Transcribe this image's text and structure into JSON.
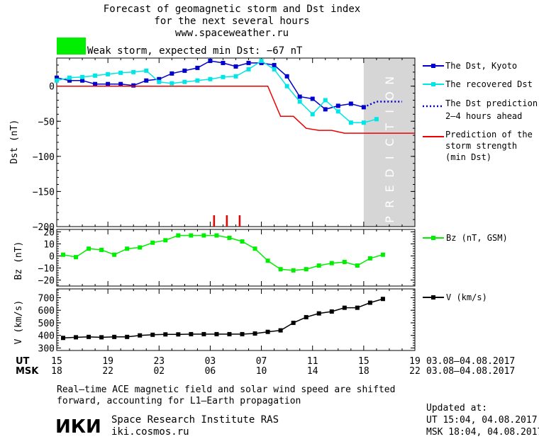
{
  "header": {
    "title_line1": "Forecast of geomagnetic storm and Dst index",
    "title_line2": "for the next several hours",
    "url": "www.spaceweather.ru",
    "status_text": "Weak storm, expected min Dst: −67 nT",
    "status_color": "#00ee00"
  },
  "chart_data": [
    {
      "type": "line",
      "panel": "dst",
      "ylabel": "Dst (nT)",
      "ylim": [
        -200,
        40
      ],
      "yticks": [
        0,
        -50,
        -100,
        -150,
        -200
      ],
      "ytick_labels": [
        "0",
        "−50",
        "−100",
        "−150",
        "−200"
      ],
      "xlim": [
        15,
        43
      ],
      "prediction_band": {
        "x": [
          39,
          43
        ],
        "label": "PREDICTION"
      },
      "storm_markers_x": [
        27.3,
        28.3,
        29.3
      ],
      "series": [
        {
          "name": "The Dst, Kyoto",
          "color": "#0000cc",
          "marker": "square",
          "x": [
            15,
            16,
            17,
            18,
            19,
            20,
            21,
            22,
            23,
            24,
            25,
            26,
            27,
            28,
            29,
            30,
            31,
            32,
            33,
            34,
            35,
            36,
            37,
            38,
            39
          ],
          "y": [
            12,
            8,
            8,
            3,
            3,
            3,
            1,
            8,
            10,
            18,
            22,
            26,
            36,
            33,
            28,
            33,
            33,
            30,
            14,
            -15,
            -18,
            -33,
            -28,
            -25,
            -30
          ]
        },
        {
          "name": "The recovered Dst",
          "color": "#00e5e5",
          "marker": "square",
          "x": [
            15,
            16,
            17,
            18,
            19,
            20,
            21,
            22,
            23,
            24,
            25,
            26,
            27,
            28,
            29,
            30,
            31,
            32,
            33,
            34,
            35,
            36,
            37,
            38,
            39,
            40
          ],
          "y": [
            8,
            12,
            13,
            15,
            17,
            19,
            20,
            22,
            6,
            4,
            6,
            8,
            10,
            13,
            14,
            24,
            36,
            24,
            0,
            -22,
            -40,
            -20,
            -36,
            -52,
            -52,
            -47
          ]
        },
        {
          "name": "The Dst prediction 2–4 hours ahead",
          "color": "#0000cc",
          "style": "dotted",
          "x": [
            39,
            40,
            41,
            42
          ],
          "y": [
            -30,
            -22,
            -22,
            -22
          ]
        },
        {
          "name": "Prediction of the storm strength (min Dst)",
          "color": "#ee0000",
          "x": [
            15,
            31.5,
            32.5,
            33.5,
            34.5,
            35.5,
            36.5,
            37.5,
            43
          ],
          "y": [
            0,
            0,
            -43,
            -43,
            -60,
            -63,
            -63,
            -67,
            -67
          ]
        }
      ]
    },
    {
      "type": "line",
      "panel": "bz",
      "ylabel": "Bz (nT)",
      "ylim": [
        -25,
        22
      ],
      "yticks": [
        20,
        10,
        0,
        -10,
        -20
      ],
      "ytick_labels": [
        "20",
        "10",
        "0",
        "−10",
        "−20"
      ],
      "xlim": [
        15,
        43
      ],
      "series": [
        {
          "name": "Bz (nT, GSM)",
          "color": "#00ee00",
          "marker": "square",
          "x": [
            15.5,
            16.5,
            17.5,
            18.5,
            19.5,
            20.5,
            21.5,
            22.5,
            23.5,
            24.5,
            25.5,
            26.5,
            27.5,
            28.5,
            29.5,
            30.5,
            31.5,
            32.5,
            33.5,
            34.5,
            35.5,
            36.5,
            37.5,
            38.5,
            39.5,
            40.5
          ],
          "y": [
            1,
            -1,
            6,
            5,
            1,
            6,
            7,
            11,
            13,
            17,
            17,
            17,
            17,
            15,
            12,
            6,
            -4,
            -11,
            -12,
            -11,
            -8,
            -6,
            -5,
            -8,
            -2,
            1
          ]
        }
      ]
    },
    {
      "type": "line",
      "panel": "v",
      "ylabel": "V (km/s)",
      "ylim": [
        280,
        770
      ],
      "yticks": [
        700,
        600,
        500,
        400,
        300
      ],
      "ytick_labels": [
        "700",
        "600",
        "500",
        "400",
        "300"
      ],
      "xlim": [
        15,
        43
      ],
      "xticks": [
        15,
        19,
        23,
        27,
        31,
        35,
        39,
        43
      ],
      "xtick_labels_ut": [
        "15",
        "19",
        "23",
        "03",
        "07",
        "11",
        "15",
        "19"
      ],
      "xtick_labels_msk": [
        "18",
        "22",
        "02",
        "06",
        "10",
        "14",
        "18",
        "22"
      ],
      "date_range": "03.08–04.08.2017",
      "series": [
        {
          "name": "V (km/s)",
          "color": "#000000",
          "marker": "square",
          "x": [
            15.5,
            16.5,
            17.5,
            18.5,
            19.5,
            20.5,
            21.5,
            22.5,
            23.5,
            24.5,
            25.5,
            26.5,
            27.5,
            28.5,
            29.5,
            30.5,
            31.5,
            32.5,
            33.5,
            34.5,
            35.5,
            36.5,
            37.5,
            38.5,
            39.5,
            40.5
          ],
          "y": [
            380,
            385,
            388,
            385,
            388,
            388,
            400,
            405,
            408,
            408,
            410,
            410,
            410,
            410,
            410,
            415,
            428,
            440,
            500,
            545,
            575,
            590,
            620,
            620,
            660,
            690
          ]
        }
      ]
    }
  ],
  "legend": {
    "dst_kyoto": "The Dst, Kyoto",
    "recovered": "The recovered Dst",
    "pred_line1": "The Dst prediction",
    "pred_line2": "2–4 hours ahead",
    "storm_line1": "Prediction of the",
    "storm_line2": "storm strength",
    "storm_line3": "(min Dst)",
    "bz": "Bz (nT, GSM)",
    "v": "V (km/s)"
  },
  "axis": {
    "ut_label": "UT",
    "msk_label": "MSK",
    "ut_date": "03.08–04.08.2017",
    "msk_date": "03.08–04.08.2017"
  },
  "footer": {
    "note_line1": "Real–time ACE magnetic field and solar wind speed are shifted",
    "note_line2": "forward, accounting for L1–Earth propagation",
    "logo_text": "ИКИ",
    "institute": "Space Research Institute RAS",
    "website": "iki.cosmos.ru",
    "updated_label": "Updated at:",
    "updated_ut": "UT  15:04, 04.08.2017",
    "updated_msk": "MSK 18:04, 04.08.2017"
  }
}
